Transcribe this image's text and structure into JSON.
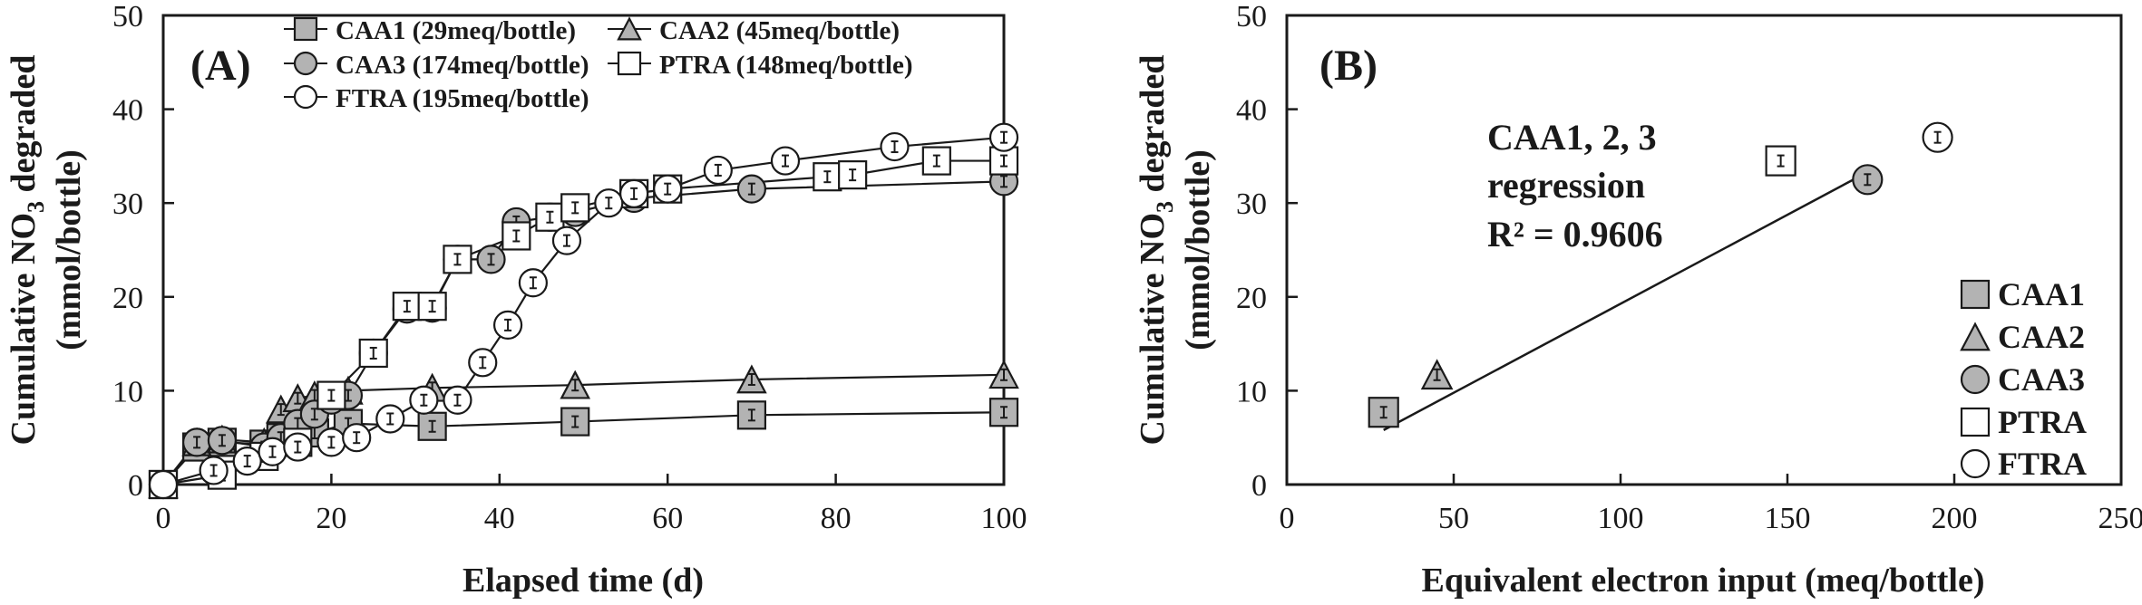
{
  "chart_data": [
    {
      "panel_label": "(A)",
      "type": "line",
      "xlabel": "Elapsed time (d)",
      "ylabel_line1": "Cumulative NO3 degraded",
      "ylabel_line2": "(mmol/bottle)",
      "xlim": [
        0,
        100
      ],
      "ylim": [
        0,
        50
      ],
      "xticks": [
        0,
        20,
        40,
        60,
        80,
        100
      ],
      "yticks": [
        0,
        10,
        20,
        30,
        40,
        50
      ],
      "legend_position": "top",
      "series": [
        {
          "name": "CAA1 (29meq/bottle)",
          "marker": "square",
          "fill": "#b3b3b3",
          "x": [
            0,
            4,
            7,
            12,
            14,
            16,
            18,
            22,
            32,
            49,
            70,
            100
          ],
          "y": [
            0,
            4,
            4.5,
            4.3,
            5,
            5.3,
            5.5,
            6.5,
            6.2,
            6.7,
            7.4,
            7.7
          ]
        },
        {
          "name": "CAA2 (45meq/bottle)",
          "marker": "triangle",
          "fill": "#b3b3b3",
          "x": [
            0,
            4,
            7,
            12,
            14,
            16,
            18,
            22,
            32,
            49,
            70,
            100
          ],
          "y": [
            0,
            4.5,
            4.8,
            4.5,
            8,
            9.2,
            9.5,
            10,
            10.3,
            10.6,
            11.2,
            11.7
          ]
        },
        {
          "name": "CAA3 (174meq/bottle)",
          "marker": "circle",
          "fill": "#b3b3b3",
          "x": [
            0,
            4,
            7,
            12,
            14,
            16,
            18,
            20,
            22,
            25,
            29,
            32,
            35,
            39,
            42,
            46,
            49,
            56,
            70,
            100
          ],
          "y": [
            0,
            4.5,
            4.7,
            4,
            5,
            6.5,
            7.5,
            9,
            9.5,
            14,
            18.7,
            18.8,
            24,
            24,
            28,
            28.5,
            29,
            30.5,
            31.5,
            32.3
          ]
        },
        {
          "name": "PTRA (148meq/bottle)",
          "marker": "square",
          "fill": "#ffffff",
          "x": [
            0,
            7,
            12,
            16,
            20,
            25,
            29,
            32,
            35,
            42,
            46,
            49,
            56,
            60,
            79,
            82,
            92,
            100
          ],
          "y": [
            0,
            1,
            3,
            4.5,
            9.5,
            14,
            19,
            19,
            24,
            26.5,
            28.5,
            29.5,
            31,
            31.5,
            32.8,
            33,
            34.5,
            34.5
          ]
        },
        {
          "name": "FTRA (195meq/bottle)",
          "marker": "circle",
          "fill": "#ffffff",
          "x": [
            0,
            6,
            10,
            13,
            16,
            20,
            23,
            27,
            31,
            35,
            38,
            41,
            44,
            48,
            53,
            56,
            60,
            66,
            74,
            87,
            100
          ],
          "y": [
            0,
            1.5,
            2.5,
            3.5,
            4,
            4.5,
            5,
            7,
            9,
            9,
            13,
            17,
            21.5,
            26,
            30,
            31,
            31.5,
            33.5,
            34.5,
            36,
            37
          ]
        }
      ]
    },
    {
      "panel_label": "(B)",
      "type": "scatter",
      "xlabel": "Equivalent electron input (meq/bottle)",
      "ylabel_line1": "Cumulative NO3 degraded",
      "ylabel_line2": "(mmol/bottle)",
      "xlim": [
        0,
        250
      ],
      "ylim": [
        0,
        50
      ],
      "xticks": [
        0,
        50,
        100,
        150,
        200,
        250
      ],
      "yticks": [
        0,
        10,
        20,
        30,
        40,
        50
      ],
      "legend_position": "bottom-right",
      "annotation": [
        "CAA1, 2, 3",
        "regression",
        "R² = 0.9606"
      ],
      "regression_line": {
        "x": [
          29,
          174
        ],
        "y": [
          5.8,
          33.3
        ]
      },
      "series": [
        {
          "name": "CAA1",
          "marker": "square",
          "fill": "#b3b3b3",
          "x": [
            29
          ],
          "y": [
            7.7
          ]
        },
        {
          "name": "CAA2",
          "marker": "triangle",
          "fill": "#b3b3b3",
          "x": [
            45
          ],
          "y": [
            11.7
          ]
        },
        {
          "name": "CAA3",
          "marker": "circle",
          "fill": "#b3b3b3",
          "x": [
            174
          ],
          "y": [
            32.5
          ]
        },
        {
          "name": "PTRA",
          "marker": "square",
          "fill": "#ffffff",
          "x": [
            148
          ],
          "y": [
            34.5
          ]
        },
        {
          "name": "FTRA",
          "marker": "circle",
          "fill": "#ffffff",
          "x": [
            195
          ],
          "y": [
            37
          ]
        }
      ]
    }
  ]
}
